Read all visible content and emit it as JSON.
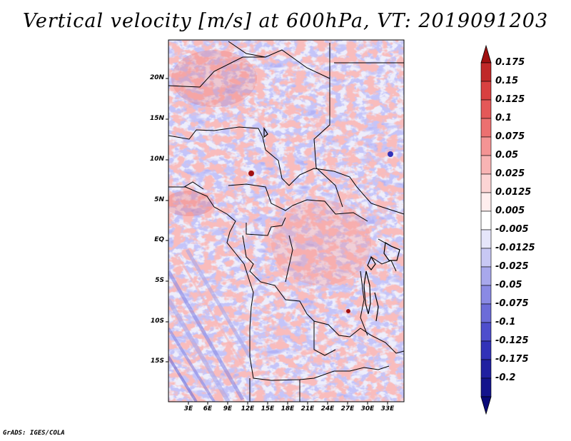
{
  "title": "Vertical velocity [m/s] at 600hPa, VT: 2019091203",
  "credit": "GrADS: IGES/COLA",
  "axes": {
    "lat_labels": [
      "20N",
      "15N",
      "10N",
      "5N",
      "EQ",
      "5S",
      "10S",
      "15S"
    ],
    "lon_labels": [
      "3E",
      "6E",
      "9E",
      "12E",
      "15E",
      "18E",
      "21E",
      "24E",
      "27E",
      "30E",
      "33E"
    ]
  },
  "colorbar": {
    "labels": [
      "0.175",
      "0.15",
      "0.125",
      "0.1",
      "0.075",
      "0.05",
      "0.025",
      "0.0125",
      "0.005",
      "-0.005",
      "-0.0125",
      "-0.025",
      "-0.05",
      "-0.075",
      "-0.1",
      "-0.125",
      "-0.175",
      "-0.2"
    ],
    "colors": [
      "#a01010",
      "#c02828",
      "#d84040",
      "#e45858",
      "#ec7070",
      "#f49494",
      "#f8b4b4",
      "#fcd4d4",
      "#ffeeee",
      "#ffffff",
      "#e6e6fa",
      "#c8c8f4",
      "#a8a8ec",
      "#8a8ae4",
      "#6c6cd8",
      "#4e4ecc",
      "#3232b8",
      "#2020a0",
      "#14148c",
      "#0a0a78"
    ]
  }
}
